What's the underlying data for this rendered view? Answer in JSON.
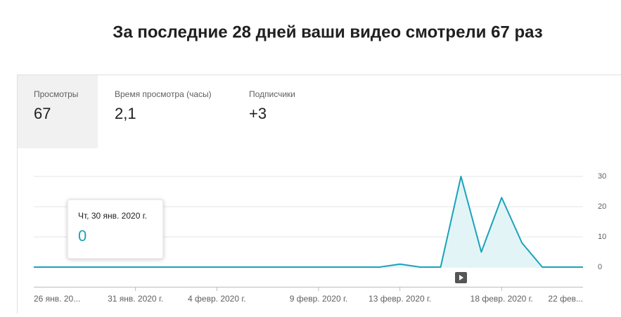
{
  "header": {
    "title": "За последние 28 дней ваши видео смотрели 67 раз"
  },
  "tabs": [
    {
      "label": "Просмотры",
      "value": "67"
    },
    {
      "label": "Время просмотра (часы)",
      "value": "2,1"
    },
    {
      "label": "Подписчики",
      "value": "+3"
    }
  ],
  "tooltip": {
    "label": "Чт, 30 янв. 2020 г."
  },
  "chart_data": {
    "type": "line",
    "color": "#1aa3b8",
    "fill": "#e3f4f7",
    "grid": true,
    "categories": [
      "26 янв. 20...",
      null,
      null,
      null,
      null,
      "31 янв. 2020 г.",
      null,
      null,
      null,
      "4 февр. 2020 г.",
      null,
      null,
      null,
      null,
      "9 февр. 2020 г.",
      null,
      null,
      null,
      "13 февр. 2020 г.",
      null,
      null,
      null,
      null,
      "18 февр. 2020 г.",
      null,
      null,
      null,
      "22 фев..."
    ],
    "values": [
      0,
      0,
      0,
      0,
      0,
      0,
      0,
      0,
      0,
      0,
      0,
      0,
      0,
      0,
      0,
      0,
      0,
      0,
      1,
      0,
      0,
      30,
      5,
      23,
      8,
      0,
      0,
      0
    ],
    "ylim": [
      0,
      30
    ],
    "yticks": [
      0,
      10,
      20,
      30
    ]
  }
}
